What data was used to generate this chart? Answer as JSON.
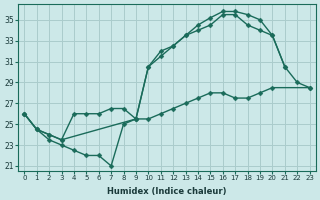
{
  "xlabel": "Humidex (Indice chaleur)",
  "bg_color": "#cce8e8",
  "grid_color": "#aacccc",
  "line_color": "#1a6b5a",
  "xlim": [
    -0.5,
    23.5
  ],
  "ylim": [
    20.5,
    36.5
  ],
  "xticks": [
    0,
    1,
    2,
    3,
    4,
    5,
    6,
    7,
    8,
    9,
    10,
    11,
    12,
    13,
    14,
    15,
    16,
    17,
    18,
    19,
    20,
    21,
    22,
    23
  ],
  "yticks": [
    21,
    23,
    25,
    27,
    29,
    31,
    33,
    35
  ],
  "curve1_x": [
    0,
    1,
    2,
    3,
    4,
    5,
    6,
    7,
    8,
    9,
    10,
    11,
    12,
    13,
    14,
    15,
    16,
    17,
    18,
    19,
    20,
    21
  ],
  "curve1_y": [
    26.0,
    24.5,
    23.5,
    23.0,
    22.5,
    22.0,
    22.0,
    21.0,
    25.0,
    25.5,
    30.5,
    32.0,
    32.5,
    33.5,
    34.5,
    35.2,
    35.8,
    35.8,
    35.5,
    35.0,
    33.5,
    30.5
  ],
  "curve2_x": [
    0,
    1,
    2,
    3,
    4,
    5,
    6,
    7,
    8,
    9,
    10,
    11,
    12,
    13,
    14,
    15,
    16,
    17,
    18,
    19,
    20,
    21,
    22,
    23
  ],
  "curve2_y": [
    26.0,
    24.5,
    24.0,
    23.5,
    26.0,
    26.0,
    26.0,
    26.5,
    26.5,
    25.5,
    30.5,
    31.5,
    32.5,
    33.5,
    34.0,
    34.5,
    35.5,
    35.5,
    34.5,
    34.0,
    33.5,
    30.5,
    29.0,
    28.5
  ],
  "curve3_x": [
    0,
    1,
    2,
    3,
    9,
    10,
    11,
    12,
    13,
    14,
    15,
    16,
    17,
    18,
    19,
    20,
    23
  ],
  "curve3_y": [
    26.0,
    24.5,
    24.0,
    23.5,
    25.5,
    25.5,
    26.0,
    26.5,
    27.0,
    27.5,
    28.0,
    28.0,
    27.5,
    27.5,
    28.0,
    28.5,
    28.5
  ]
}
